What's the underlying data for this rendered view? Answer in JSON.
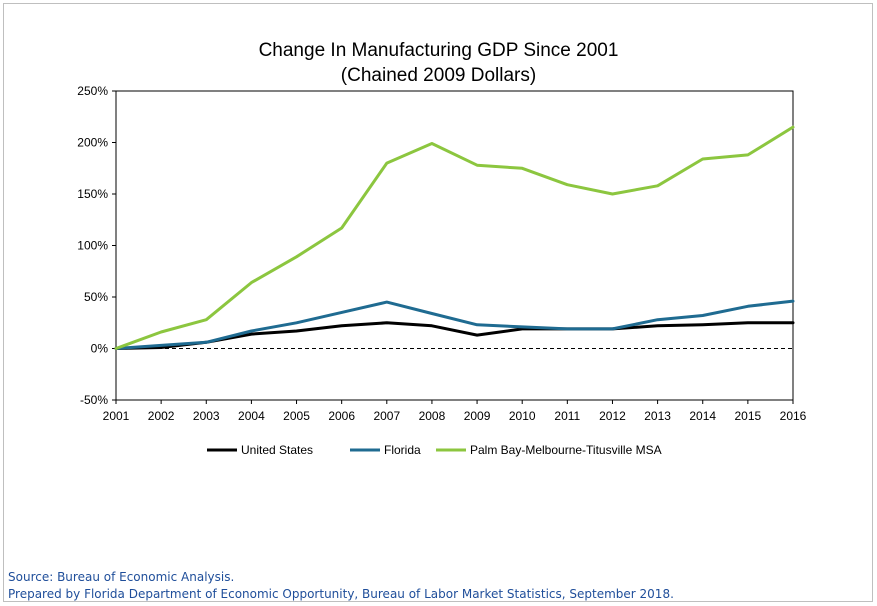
{
  "chart_data": {
    "type": "line",
    "title": "Change In Manufacturing GDP Since 2001",
    "subtitle": "(Chained 2009 Dollars)",
    "xlabel": "",
    "ylabel": "",
    "x": [
      "2001",
      "2002",
      "2003",
      "2004",
      "2005",
      "2006",
      "2007",
      "2008",
      "2009",
      "2010",
      "2011",
      "2012",
      "2013",
      "2014",
      "2015",
      "2016"
    ],
    "y_ticks": [
      "-50%",
      "0%",
      "50%",
      "100%",
      "150%",
      "200%",
      "250%"
    ],
    "ylim": [
      -50,
      250
    ],
    "y_unit": "%",
    "grid": false,
    "zero_line": "dashed",
    "legend_position": "bottom",
    "series": [
      {
        "name": "United States",
        "color": "#000000",
        "values": [
          0,
          1,
          6,
          14,
          17,
          22,
          25,
          22,
          13,
          19,
          19,
          19,
          22,
          23,
          25,
          25
        ]
      },
      {
        "name": "Florida",
        "color": "#1f6b91",
        "values": [
          0,
          3,
          6,
          17,
          25,
          35,
          45,
          34,
          23,
          21,
          19,
          19,
          28,
          32,
          41,
          46
        ]
      },
      {
        "name": "Palm Bay-Melbourne-Titusville MSA",
        "color": "#8cc63f",
        "values": [
          0,
          16,
          28,
          64,
          89,
          117,
          180,
          199,
          178,
          175,
          159,
          150,
          158,
          184,
          188,
          215
        ]
      }
    ]
  },
  "footer": {
    "source": "Source: Bureau of Economic Analysis.",
    "prepared_by": "Prepared by Florida Department of Economic Opportunity,  Bureau of Labor Market Statistics, September 2018."
  }
}
